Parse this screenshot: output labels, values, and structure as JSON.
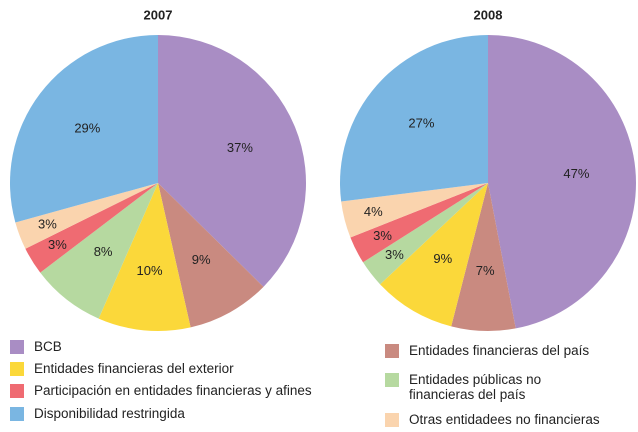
{
  "chart_data": [
    {
      "type": "pie",
      "title": "2007",
      "categories": [
        "BCB",
        "Entidades financieras del país",
        "Entidades financieras del exterior",
        "Entidades públicas no financieras del país",
        "Participación en entidades financieras y afines",
        "Otras entidadees no financieras",
        "Disponibilidad restringida"
      ],
      "values": [
        37,
        9,
        10,
        8,
        3,
        3,
        29
      ],
      "value_labels": [
        "37%",
        "9%",
        "10%",
        "8%",
        "3%",
        "3%",
        "29%"
      ],
      "colors": [
        "#a98dc4",
        "#c98a80",
        "#fbd83a",
        "#b6d9a0",
        "#ef6b72",
        "#fad4ae",
        "#7ab6e2"
      ]
    },
    {
      "type": "pie",
      "title": "2008",
      "categories": [
        "BCB",
        "Entidades financieras del país",
        "Entidades financieras del exterior",
        "Entidades públicas no financieras del país",
        "Participación en entidades financieras y afines",
        "Otras entidadees no financieras",
        "Disponibilidad restringida"
      ],
      "values": [
        47,
        7,
        9,
        3,
        3,
        4,
        27
      ],
      "value_labels": [
        "47%",
        "7%",
        "9%",
        "3%",
        "3%",
        "4%",
        "27%"
      ],
      "colors": [
        "#a98dc4",
        "#c98a80",
        "#fbd83a",
        "#b6d9a0",
        "#ef6b72",
        "#fad4ae",
        "#7ab6e2"
      ]
    }
  ]
}
